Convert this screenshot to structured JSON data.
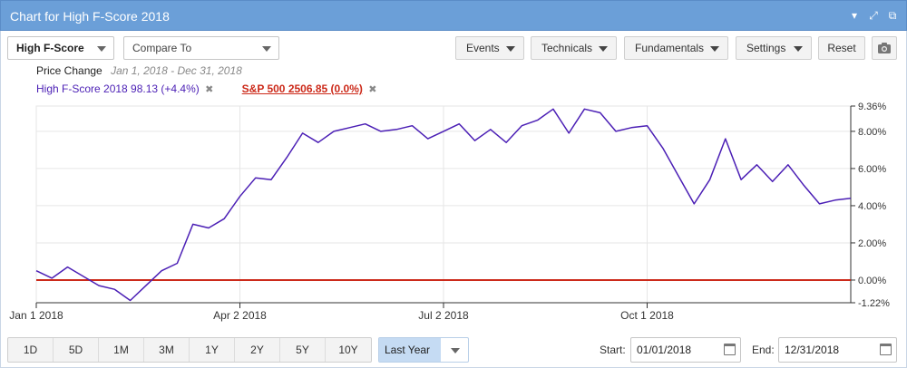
{
  "window": {
    "title": "Chart for High F-Score 2018",
    "icons": [
      "chevron-down-icon",
      "expand-icon",
      "external-link-icon"
    ]
  },
  "toolbar": {
    "symbol_select": "High F-Score",
    "compare_placeholder": "Compare To",
    "events_label": "Events",
    "technicals_label": "Technicals",
    "fundamentals_label": "Fundamentals",
    "settings_label": "Settings",
    "reset_label": "Reset",
    "camera_icon": "camera-icon"
  },
  "legend": {
    "mode_label": "Price Change",
    "date_range": "Jan 1, 2018 - Dec 31, 2018",
    "primary": {
      "text": "High F-Score 2018 98.13 (+4.4%)",
      "color": "#4b1fb5"
    },
    "benchmark": {
      "text": "S&P 500 2506.85 (0.0%)",
      "color": "#cc2a1a"
    }
  },
  "chart_data": {
    "type": "line",
    "x_range": [
      "2018-01-01",
      "2018-12-31"
    ],
    "ylim": [
      -1.22,
      9.36
    ],
    "y_ticks": [
      "9.36%",
      "8.00%",
      "6.00%",
      "4.00%",
      "2.00%",
      "0.00%",
      "-1.22%"
    ],
    "x_ticks": [
      "Jan 1 2018",
      "Apr 2 2018",
      "Jul 2 2018",
      "Oct 1 2018"
    ],
    "grid": true,
    "series": [
      {
        "name": "High F-Score 2018",
        "color": "#4b1fb5",
        "x": [
          "2018-01-01",
          "2018-01-08",
          "2018-01-15",
          "2018-01-22",
          "2018-01-29",
          "2018-02-05",
          "2018-02-12",
          "2018-02-19",
          "2018-02-26",
          "2018-03-05",
          "2018-03-12",
          "2018-03-19",
          "2018-03-26",
          "2018-04-02",
          "2018-04-09",
          "2018-04-16",
          "2018-04-23",
          "2018-04-30",
          "2018-05-07",
          "2018-05-14",
          "2018-05-21",
          "2018-05-28",
          "2018-06-04",
          "2018-06-11",
          "2018-06-18",
          "2018-06-25",
          "2018-07-02",
          "2018-07-09",
          "2018-07-16",
          "2018-07-23",
          "2018-07-30",
          "2018-08-06",
          "2018-08-13",
          "2018-08-20",
          "2018-08-27",
          "2018-09-03",
          "2018-09-10",
          "2018-09-17",
          "2018-09-24",
          "2018-10-01",
          "2018-10-08",
          "2018-10-15",
          "2018-10-22",
          "2018-10-29",
          "2018-11-05",
          "2018-11-12",
          "2018-11-19",
          "2018-11-26",
          "2018-12-03",
          "2018-12-10",
          "2018-12-17",
          "2018-12-24",
          "2018-12-31"
        ],
        "values": [
          0.5,
          0.1,
          0.7,
          0.2,
          -0.3,
          -0.5,
          -1.1,
          -0.3,
          0.5,
          0.9,
          3.0,
          2.8,
          3.3,
          4.5,
          5.5,
          5.4,
          6.6,
          7.9,
          7.4,
          8.0,
          8.2,
          8.4,
          8.0,
          8.1,
          8.3,
          7.6,
          8.0,
          8.4,
          7.5,
          8.1,
          7.4,
          8.3,
          8.6,
          9.2,
          7.9,
          9.2,
          9.0,
          8.0,
          8.2,
          8.3,
          7.1,
          5.6,
          4.1,
          5.4,
          7.6,
          5.4,
          6.2,
          5.3,
          6.2,
          5.1,
          4.1,
          4.3,
          4.4
        ]
      },
      {
        "name": "S&P 500",
        "color": "#cc2a1a",
        "x": [
          "2018-01-01",
          "2018-12-31"
        ],
        "values": [
          0.0,
          0.0
        ]
      }
    ]
  },
  "range_buttons": [
    "1D",
    "5D",
    "1M",
    "3M",
    "1Y",
    "2Y",
    "5Y",
    "10Y"
  ],
  "period_select": "Last Year",
  "dates": {
    "start_label": "Start:",
    "start_value": "01/01/2018",
    "end_label": "End:",
    "end_value": "12/31/2018"
  }
}
